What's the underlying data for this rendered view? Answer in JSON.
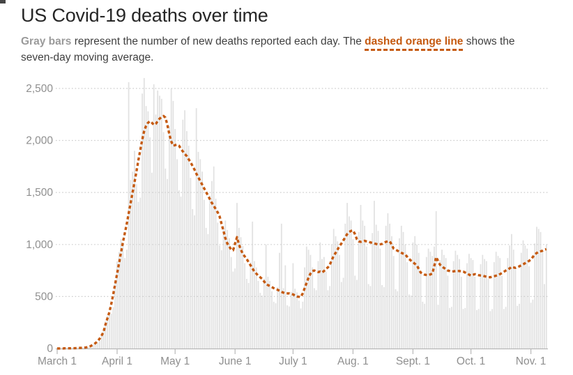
{
  "header": {
    "title": "US Covid-19 deaths over time",
    "subtitle": {
      "gray_bold": "Gray bars",
      "text1": " represent the number of new deaths reported each day. The ",
      "orange_bold": "dashed orange line",
      "text2": " shows the seven-day moving average."
    }
  },
  "colors": {
    "title_text": "#262626",
    "body_text": "#404040",
    "gray_label": "#9a9a9a",
    "bar": "#e2e2e2",
    "line": "#c55a11",
    "gridline": "#cccccc",
    "axis_line": "#b8b8b8",
    "axis_text": "#8f8f8f"
  },
  "chart_data": {
    "type": "bar",
    "title": "US Covid-19 deaths over time",
    "xlabel": "",
    "ylabel": "",
    "x_start_date": "March 1",
    "x_end_date": "about Nov. 9",
    "x_tick_labels": [
      "March 1",
      "April 1",
      "May 1",
      "June 1",
      "July 1",
      "Aug. 1",
      "Sept. 1",
      "Oct. 1",
      "Nov. 1"
    ],
    "x_tick_day_index": [
      0,
      31,
      61,
      92,
      122,
      153,
      184,
      214,
      245
    ],
    "y_ticks": [
      0,
      500,
      1000,
      1500,
      2000,
      2500
    ],
    "ylim": [
      0,
      2620
    ],
    "grid": "dotted-horizontal",
    "legend_position": "none",
    "series": [
      {
        "name": "new-deaths-reported-each-day",
        "type": "bar",
        "values": [
          0,
          1,
          1,
          2,
          1,
          3,
          2,
          1,
          3,
          4,
          3,
          6,
          5,
          8,
          6,
          9,
          16,
          25,
          35,
          45,
          52,
          57,
          73,
          131,
          187,
          262,
          315,
          327,
          336,
          397,
          646,
          837,
          928,
          1050,
          1000,
          870,
          950,
          2560,
          1620,
          1700,
          1900,
          1580,
          1410,
          1450,
          2450,
          2600,
          2330,
          2280,
          2030,
          1690,
          2540,
          2250,
          2480,
          2430,
          2400,
          2080,
          1730,
          1630,
          2140,
          2500,
          2380,
          2110,
          1820,
          1520,
          1460,
          2200,
          2290,
          2090,
          1950,
          1640,
          1340,
          1280,
          2310,
          1890,
          1820,
          1700,
          1430,
          1160,
          1100,
          1470,
          1610,
          1750,
          1440,
          1210,
          990,
          945,
          1175,
          1230,
          1140,
          1060,
          880,
          740,
          770,
          1400,
          1160,
          1070,
          985,
          820,
          670,
          630,
          830,
          1220,
          840,
          780,
          650,
          535,
          510,
          670,
          1000,
          690,
          650,
          550,
          450,
          435,
          590,
          920,
          1200,
          580,
          800,
          415,
          405,
          545,
          820,
          575,
          540,
          460,
          385,
          450,
          780,
          980,
          950,
          900,
          780,
          580,
          560,
          840,
          1020,
          860,
          880,
          740,
          560,
          600,
          1000,
          1150,
          1080,
          1030,
          900,
          640,
          680,
          1200,
          1400,
          1270,
          1230,
          1050,
          700,
          660,
          1120,
          1380,
          1230,
          1180,
          980,
          620,
          600,
          1110,
          1420,
          1190,
          1130,
          960,
          610,
          590,
          1180,
          1300,
          1200,
          1080,
          890,
          570,
          550,
          1060,
          1180,
          1120,
          1000,
          830,
          520,
          510,
          1020,
          1080,
          1000,
          920,
          740,
          450,
          430,
          880,
          960,
          930,
          890,
          980,
          1320,
          420,
          850,
          950,
          900,
          870,
          700,
          390,
          400,
          840,
          940,
          900,
          860,
          690,
          380,
          390,
          820,
          910,
          870,
          850,
          690,
          370,
          380,
          810,
          900,
          860,
          840,
          670,
          360,
          380,
          830,
          930,
          890,
          870,
          700,
          380,
          400,
          870,
          990,
          1100,
          950,
          760,
          410,
          430,
          920,
          1040,
          990,
          960,
          790,
          440,
          470,
          1010,
          1170,
          1150,
          1120,
          950,
          620,
          1000
        ]
      },
      {
        "name": "seven-day-moving-average",
        "type": "line",
        "style": "dashed",
        "values": [
          1,
          1,
          1,
          1,
          2,
          2,
          2,
          2,
          3,
          3,
          4,
          5,
          6,
          7,
          8,
          11,
          15,
          21,
          30,
          41,
          55,
          73,
          95,
          125,
          160,
          230,
          290,
          350,
          430,
          520,
          620,
          720,
          820,
          920,
          1020,
          1110,
          1200,
          1300,
          1400,
          1500,
          1600,
          1700,
          1810,
          1910,
          2010,
          2090,
          2140,
          2170,
          2185,
          2170,
          2150,
          2160,
          2185,
          2210,
          2225,
          2235,
          2220,
          2150,
          2060,
          1990,
          1950,
          1955,
          1960,
          1950,
          1920,
          1895,
          1870,
          1850,
          1820,
          1790,
          1755,
          1720,
          1680,
          1645,
          1610,
          1575,
          1540,
          1505,
          1470,
          1435,
          1400,
          1370,
          1340,
          1310,
          1270,
          1200,
          1130,
          1060,
          1010,
          980,
          950,
          945,
          1010,
          1070,
          1000,
          950,
          910,
          885,
          860,
          830,
          800,
          770,
          740,
          720,
          700,
          685,
          670,
          645,
          620,
          610,
          600,
          590,
          580,
          572,
          565,
          555,
          545,
          537,
          530,
          530,
          530,
          525,
          520,
          510,
          500,
          497,
          495,
          530,
          580,
          630,
          680,
          720,
          745,
          750,
          740,
          735,
          740,
          730,
          745,
          765,
          780,
          805,
          850,
          890,
          920,
          950,
          985,
          1010,
          1040,
          1070,
          1100,
          1120,
          1130,
          1135,
          1100,
          1050,
          1030,
          1025,
          1030,
          1035,
          1030,
          1025,
          1020,
          1015,
          1010,
          1005,
          1000,
          1002,
          1005,
          1015,
          1025,
          1030,
          1030,
          1000,
          960,
          950,
          940,
          930,
          920,
          912,
          905,
          882,
          860,
          845,
          830,
          815,
          800,
          765,
          730,
          720,
          710,
          707,
          705,
          712,
          720,
          790,
          880,
          840,
          805,
          790,
          775,
          762,
          750,
          745,
          740,
          742,
          745,
          745,
          745,
          742,
          740,
          730,
          720,
          710,
          700,
          708,
          715,
          710,
          705,
          702,
          700,
          695,
          690,
          687,
          685,
          690,
          695,
          700,
          705,
          715,
          725,
          737,
          750,
          760,
          770,
          785,
          780,
          775,
          782,
          790,
          800,
          810,
          820,
          830,
          842,
          855,
          880,
          905,
          918,
          930,
          935,
          940,
          950,
          955
        ]
      }
    ]
  }
}
